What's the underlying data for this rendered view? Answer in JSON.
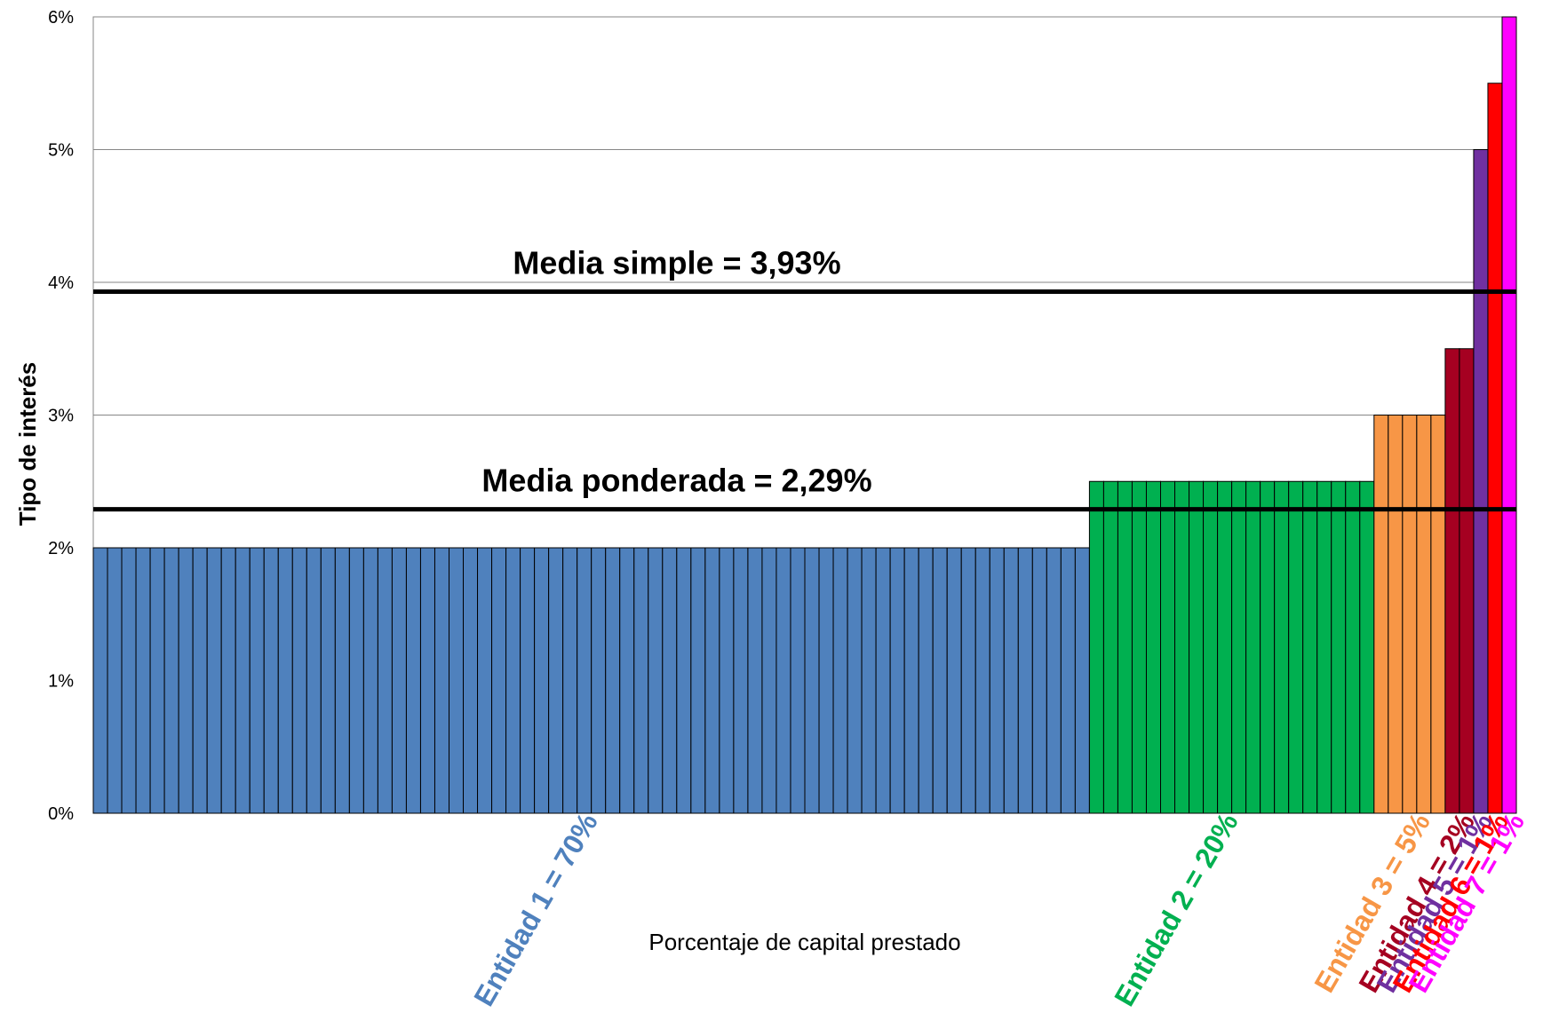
{
  "chart_data": {
    "type": "bar",
    "ylabel": "Tipo de interés",
    "xlabel": "Porcentaje de capital prestado",
    "ylim": [
      0,
      6
    ],
    "y_ticks": [
      "0%",
      "1%",
      "2%",
      "3%",
      "4%",
      "5%",
      "6%"
    ],
    "grid": true,
    "series": [
      {
        "name": "Entidad 1 = 70%",
        "bar_count": 70,
        "value": 2.0,
        "color": "#4F81BD"
      },
      {
        "name": "Entidad 2 = 20%",
        "bar_count": 20,
        "value": 2.5,
        "color": "#00B050"
      },
      {
        "name": "Entidad 3 = 5%",
        "bar_count": 5,
        "value": 3.0,
        "color": "#F79646"
      },
      {
        "name": "Entidad 4 = 2%",
        "bar_count": 2,
        "value": 3.5,
        "color": "#A50021"
      },
      {
        "name": "Entidad 5 = 1%",
        "bar_count": 1,
        "value": 5.0,
        "color": "#7030A0"
      },
      {
        "name": "Entidad 6 = 1%",
        "bar_count": 1,
        "value": 5.5,
        "color": "#FF0000"
      },
      {
        "name": "Entidad 7 = 1%",
        "bar_count": 1,
        "value": 6.0,
        "color": "#FF00FF"
      }
    ],
    "reference_lines": [
      {
        "label": "Media simple = 3,93%",
        "value": 3.93
      },
      {
        "label": "Media ponderada = 2,29%",
        "value": 2.29
      }
    ]
  }
}
